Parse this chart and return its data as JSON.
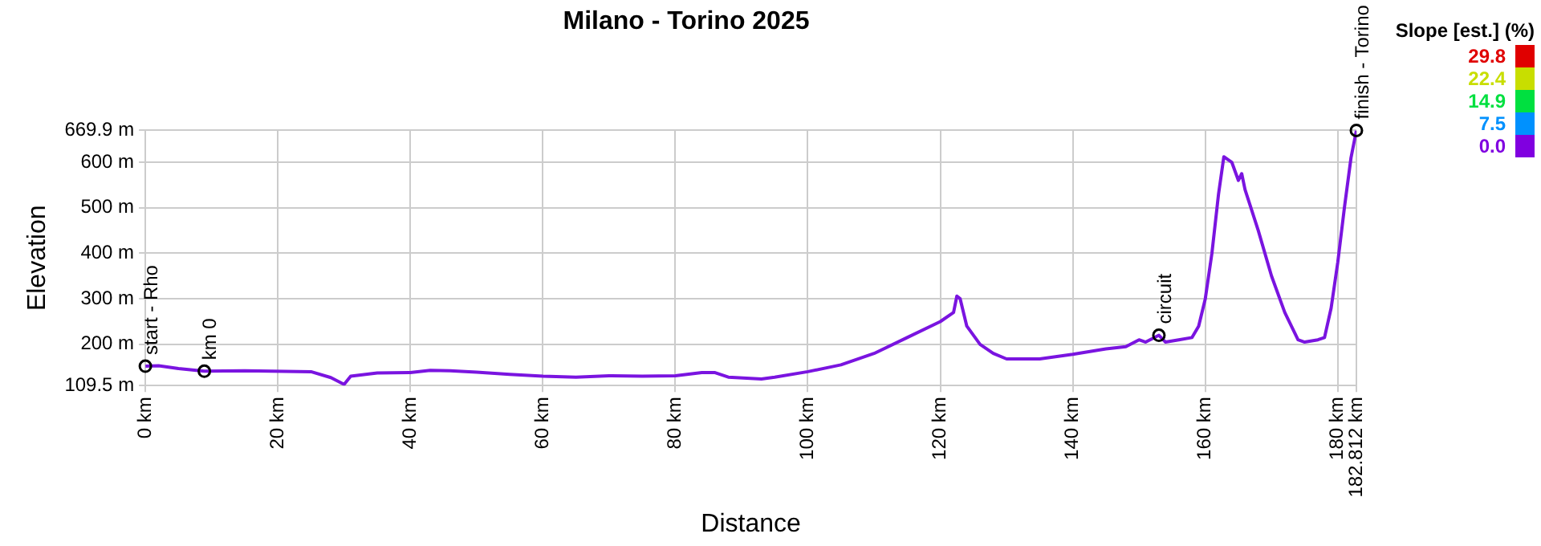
{
  "chart_data": {
    "type": "line",
    "title": "Milano - Torino 2025",
    "xlabel": "Distance",
    "ylabel": "Elevation",
    "clabel": "Slope [est.] (%)",
    "x": [
      0,
      2,
      5,
      8.9,
      15,
      25,
      28,
      30,
      31,
      35,
      40,
      43,
      46,
      50,
      55,
      60,
      65,
      70,
      75,
      80,
      84,
      86,
      88,
      93,
      95,
      100,
      105,
      110,
      115,
      120,
      122,
      122.5,
      123,
      124,
      126,
      128,
      130,
      135,
      140,
      145,
      148,
      150,
      151,
      153,
      154,
      156,
      158,
      159,
      160,
      161,
      162,
      162.8,
      164,
      165,
      165.5,
      166,
      168,
      170,
      172,
      174,
      175,
      177,
      178,
      179,
      180,
      181,
      182,
      182.812
    ],
    "values": [
      152,
      153,
      147,
      141,
      142,
      140,
      127,
      112,
      130,
      137,
      138,
      143,
      142,
      139,
      134,
      130,
      128,
      131,
      130,
      131,
      138,
      138,
      128,
      124,
      128,
      140,
      155,
      180,
      215,
      250,
      270,
      306,
      300,
      240,
      200,
      180,
      168,
      168,
      178,
      190,
      195,
      210,
      205,
      220,
      205,
      210,
      215,
      240,
      300,
      400,
      530,
      612,
      600,
      560,
      575,
      540,
      450,
      350,
      270,
      210,
      205,
      210,
      215,
      280,
      380,
      500,
      610,
      669.9
    ],
    "color": "#7a14e0",
    "cticks": [
      {
        "value": 29.8,
        "label": "29.8"
      },
      {
        "value": 22.4,
        "label": "22.4"
      },
      {
        "value": 14.9,
        "label": "14.9"
      },
      {
        "value": 7.5,
        "label": "7.5"
      },
      {
        "value": 0,
        "label": "0.0"
      }
    ],
    "xlim": [
      0,
      182.812
    ],
    "xticks": [
      {
        "value": 0,
        "label": "0 km"
      },
      {
        "value": 20,
        "label": "20 km"
      },
      {
        "value": 40,
        "label": "40 km"
      },
      {
        "value": 60,
        "label": "60 km"
      },
      {
        "value": 80,
        "label": "80 km"
      },
      {
        "value": 100,
        "label": "100 km"
      },
      {
        "value": 120,
        "label": "120 km"
      },
      {
        "value": 140,
        "label": "140 km"
      },
      {
        "value": 160,
        "label": "160 km"
      },
      {
        "value": 180,
        "label": "180 km"
      },
      {
        "value": 182.812,
        "label": "182.812 km"
      }
    ],
    "ylim": [
      109.5,
      669.9
    ],
    "yticks": [
      {
        "value": 109.5,
        "label": "109.5 m"
      },
      {
        "value": 200,
        "label": "200 m"
      },
      {
        "value": 300,
        "label": "300 m"
      },
      {
        "value": 400,
        "label": "400 m"
      },
      {
        "value": 500,
        "label": "500 m"
      },
      {
        "value": 600,
        "label": "600 m"
      },
      {
        "value": 669.9,
        "label": "669.9 m"
      }
    ],
    "grid": true,
    "marker": "none",
    "annotations": [
      {
        "text": "start - Rho",
        "x": 0,
        "y": 152
      },
      {
        "text": "km 0",
        "x": 8.9,
        "y": 141
      },
      {
        "text": "circuit",
        "x": 153,
        "y": 220
      },
      {
        "text": "finish - Torino",
        "x": 182.812,
        "y": 669.9
      }
    ]
  }
}
